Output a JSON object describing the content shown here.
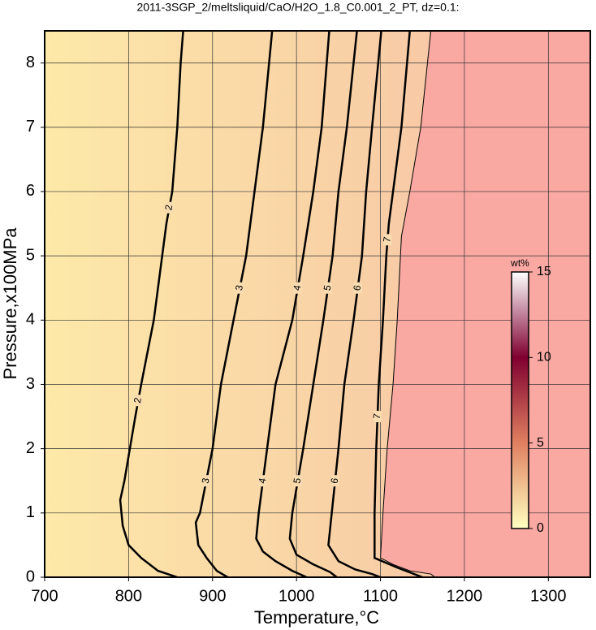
{
  "chart_data": {
    "type": "contour",
    "title": "2011-3SGP_2/meltsliquid/CaO/H2O_1.8_C0.001_2_PT, dz=0.1:",
    "xlabel": "Temperature,°C",
    "ylabel": "Pressure,x100MPa",
    "xlim": [
      700,
      1350
    ],
    "ylim": [
      0,
      8.5
    ],
    "xticks": [
      700,
      800,
      900,
      1000,
      1100,
      1200,
      1300
    ],
    "yticks": [
      0,
      1,
      2,
      3,
      4,
      5,
      6,
      7,
      8
    ],
    "grid": true,
    "background": "#fde9a8",
    "contours": [
      {
        "level": 2,
        "x": [
          865,
          862,
          858,
          852,
          845,
          830,
          815,
          808,
          795,
          790,
          793,
          800,
          815,
          835,
          858
        ],
        "y": [
          8.5,
          8.0,
          7,
          6,
          5.5,
          4,
          3,
          2.5,
          1.5,
          1.2,
          0.8,
          0.5,
          0.3,
          0.1,
          0
        ]
      },
      {
        "level": 3,
        "x": [
          971,
          960,
          950,
          940,
          925,
          910,
          900,
          885,
          880,
          883,
          893,
          905,
          918
        ],
        "y": [
          8.5,
          7,
          6,
          5,
          4,
          3,
          2,
          1,
          0.85,
          0.5,
          0.3,
          0.1,
          0
        ]
      },
      {
        "level": 4,
        "x": [
          1039,
          1030,
          1020,
          1008,
          995,
          975,
          965,
          955,
          952,
          960,
          975,
          995,
          1012
        ],
        "y": [
          8.5,
          7,
          6,
          5,
          4,
          3,
          2,
          1,
          0.6,
          0.4,
          0.25,
          0.1,
          0
        ]
      },
      {
        "level": 5,
        "x": [
          1072,
          1060,
          1050,
          1043,
          1032,
          1020,
          1008,
          995,
          992,
          1000,
          1020,
          1040,
          1048
        ],
        "y": [
          8.5,
          7,
          6,
          5,
          4,
          3,
          2,
          1,
          0.6,
          0.35,
          0.2,
          0.08,
          0
        ]
      },
      {
        "level": 6,
        "x": [
          1101,
          1090,
          1083,
          1078,
          1068,
          1057,
          1050,
          1042,
          1038,
          1050,
          1070,
          1090,
          1100
        ],
        "y": [
          8.5,
          7,
          6,
          5,
          4,
          3,
          2,
          1,
          0.5,
          0.25,
          0.12,
          0.05,
          0
        ]
      },
      {
        "level": 7,
        "x": [
          1135,
          1125,
          1115,
          1110,
          1107,
          1103,
          1098,
          1095,
          1093,
          1093,
          1120,
          1140,
          1150
        ],
        "y": [
          8.5,
          7,
          6,
          5.5,
          5,
          4,
          3,
          2,
          1,
          0.3,
          0.15,
          0.05,
          0
        ]
      }
    ],
    "melt_region": {
      "color": "#f9a8a2",
      "x": [
        1160,
        1148,
        1135,
        1125,
        1120,
        1115,
        1108,
        1103,
        1100,
        1115,
        1135,
        1160,
        1165
      ],
      "y": [
        8.5,
        7,
        6,
        5.3,
        4,
        3,
        2,
        1,
        0.3,
        0.2,
        0.1,
        0.05,
        0
      ]
    },
    "colorbar": {
      "label": "wt%",
      "lim": [
        0,
        15
      ],
      "ticks": [
        0,
        5,
        10,
        15
      ],
      "colors": [
        "#ffffc0",
        "#e08060",
        "#800030",
        "#ffffff"
      ]
    }
  }
}
